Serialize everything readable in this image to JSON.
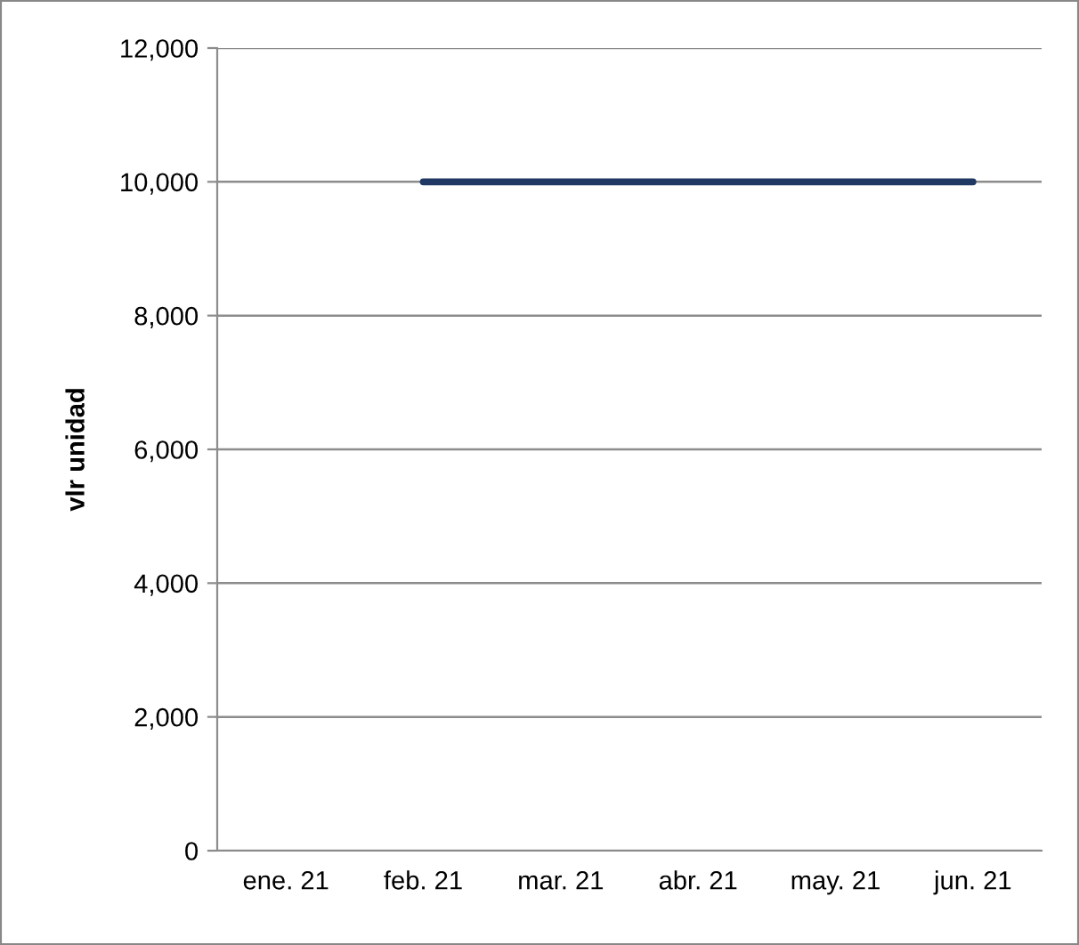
{
  "chart_data": {
    "type": "line",
    "ylabel": "vlr unidad",
    "categories": [
      "ene. 21",
      "feb. 21",
      "mar. 21",
      "abr. 21",
      "may. 21",
      "jun. 21"
    ],
    "series": [
      {
        "color": "#1f3864",
        "values": [
          null,
          10000,
          10000,
          10000,
          10000,
          10000
        ]
      }
    ],
    "ylim": [
      0,
      12000
    ],
    "yticks": [
      {
        "value": 0,
        "label": "0"
      },
      {
        "value": 2000,
        "label": "2,000"
      },
      {
        "value": 4000,
        "label": "4,000"
      },
      {
        "value": 6000,
        "label": "6,000"
      },
      {
        "value": 8000,
        "label": "8,000"
      },
      {
        "value": 10000,
        "label": "10,000"
      },
      {
        "value": 12000,
        "label": "12,000"
      }
    ],
    "grid": "y",
    "marker": "none",
    "line_style": "solid"
  }
}
